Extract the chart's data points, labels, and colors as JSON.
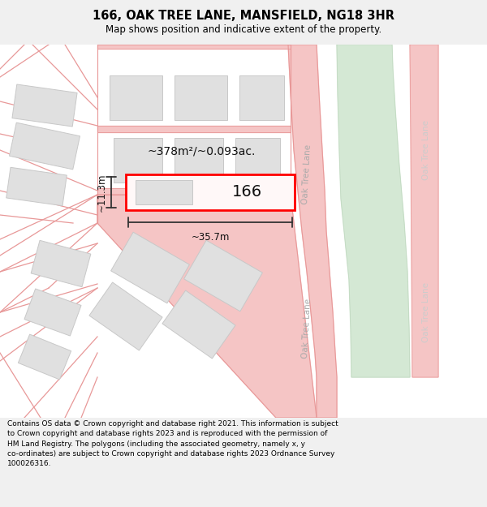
{
  "title": "166, OAK TREE LANE, MANSFIELD, NG18 3HR",
  "subtitle": "Map shows position and indicative extent of the property.",
  "footer": "Contains OS data © Crown copyright and database right 2021. This information is subject\nto Crown copyright and database rights 2023 and is reproduced with the permission of\nHM Land Registry. The polygons (including the associated geometry, namely x, y\nco-ordinates) are subject to Crown copyright and database rights 2023 Ordnance Survey\n100026316.",
  "area_text": "~378m²/~0.093ac.",
  "number_text": "166",
  "width_text": "~35.7m",
  "height_text": "~11.3m",
  "oak_tree_lane_text": "Oak Tree Lane",
  "road_color": "#f5c5c5",
  "road_edge": "#e89898",
  "building_fill": "#e0e0e0",
  "building_edge": "#c8c8c8",
  "highlight_fill": "#fff8f8",
  "highlight_edge": "#ff0000",
  "green_fill": "#d4e8d4",
  "green_edge": "#c0d8c0",
  "map_bg": "#ffffff",
  "footer_bg": "#f0f0f0",
  "title_bg": "#ffffff"
}
